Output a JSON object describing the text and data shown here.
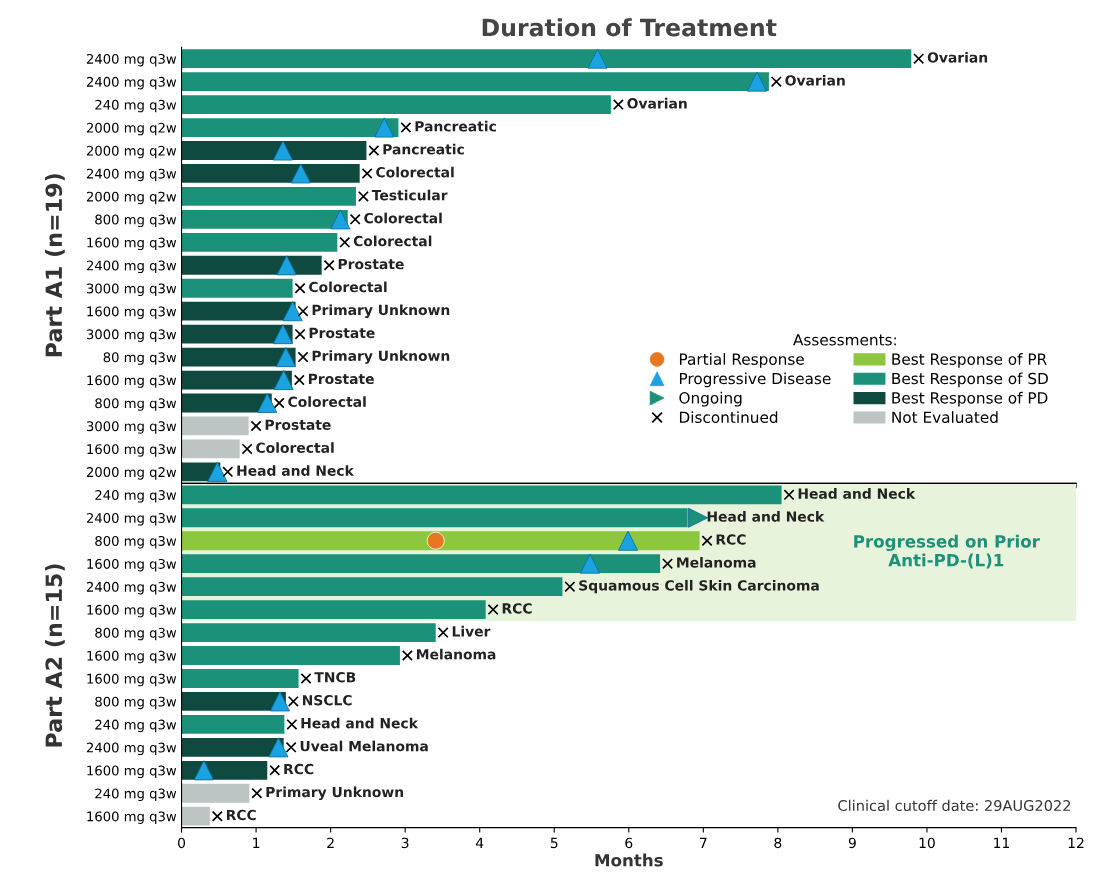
{
  "chart_data": [
    {
      "type": "bar",
      "orientation": "horizontal",
      "title": "Duration of Treatment",
      "ylabel": "Part A1 (n=19)",
      "legend_title": "Assessments:",
      "legend": "bottom right",
      "tick_labels": "y",
      "grid": false,
      "xlim": [
        0,
        12
      ],
      "xticks": [
        0,
        1,
        2,
        3,
        4,
        5,
        6,
        7,
        8,
        9,
        10,
        11,
        12
      ],
      "categories": [
        "2400 mg q3w",
        "2400 mg q3w",
        "240 mg q3w",
        "2000 mg q2w",
        "2000 mg q2w",
        "2400 mg q3w",
        "2000 mg q2w",
        "800 mg q3w",
        "1600 mg q3w",
        "2400 mg q3w",
        "3000 mg q3w",
        "1600 mg q3w",
        "3000 mg q3w",
        "80 mg q3w",
        "1600 mg q3w",
        "800 mg q3w",
        "3000 mg q3w",
        "1600 mg q3w",
        "2000 mg q2w"
      ],
      "series": [
        {
          "type": "scatter",
          "name": "Partial Response",
          "marker": "circle",
          "color": "#e87722",
          "values": [
            null,
            null,
            null,
            null,
            null,
            null,
            null,
            null,
            null,
            null,
            null,
            null,
            null,
            null,
            null,
            null,
            null,
            null,
            null
          ]
        },
        {
          "type": "scatter",
          "name": "Progressive Disease",
          "marker": "triangle",
          "color": "#1aa3e0",
          "values": [
            5.58,
            7.72,
            null,
            2.72,
            1.36,
            1.6,
            null,
            2.13,
            null,
            1.41,
            null,
            1.49,
            1.36,
            1.4,
            1.37,
            1.15,
            null,
            null,
            0.48
          ]
        },
        {
          "type": "scatter",
          "name": "Ongoing",
          "color": "#1a9178",
          "values": [
            null,
            null,
            null,
            null,
            null,
            null,
            null,
            null,
            null,
            null,
            null,
            null,
            null,
            null,
            null,
            null,
            null,
            null,
            null
          ]
        },
        {
          "type": "scatter",
          "name": "Discontinued",
          "marker": "cross",
          "color": "#000000",
          "values": [
            9.89,
            7.98,
            5.86,
            3.01,
            2.58,
            2.49,
            2.44,
            2.33,
            2.19,
            1.98,
            1.59,
            1.63,
            1.59,
            1.63,
            1.58,
            1.31,
            1.0,
            0.88,
            0.62
          ]
        },
        {
          "name": "Best Response of PR",
          "color": "#8dc63f",
          "values": [
            null,
            null,
            null,
            null,
            null,
            null,
            null,
            null,
            null,
            null,
            null,
            null,
            null,
            null,
            null,
            null,
            null,
            null,
            null
          ],
          "value_labels": [
            null,
            null,
            null,
            null,
            null,
            null,
            null,
            null,
            null,
            null,
            null,
            null,
            null,
            null,
            null,
            null,
            null,
            null,
            null
          ]
        },
        {
          "name": "Best Response of SD",
          "color": "#1a9178",
          "values": [
            9.79,
            7.88,
            5.76,
            2.91,
            null,
            null,
            2.34,
            2.23,
            2.09,
            null,
            1.49,
            null,
            null,
            null,
            null,
            null,
            null,
            null,
            null
          ],
          "value_labels": [
            "Ovarian",
            "Ovarian",
            "Ovarian",
            "Pancreatic",
            null,
            null,
            "Testicular",
            "Colorectal",
            "Colorectal",
            null,
            "Colorectal",
            null,
            null,
            null,
            null,
            null,
            null,
            null,
            null
          ]
        },
        {
          "name": "Best Response of PD",
          "color": "#0e4a3f",
          "values": [
            null,
            null,
            null,
            null,
            2.48,
            2.39,
            null,
            null,
            null,
            1.88,
            null,
            1.53,
            1.49,
            1.53,
            1.48,
            1.21,
            null,
            null,
            0.52
          ],
          "value_labels": [
            null,
            null,
            null,
            null,
            "Pancreatic",
            "Colorectal",
            null,
            null,
            null,
            "Prostate",
            null,
            "Primary Unknown",
            "Prostate",
            "Primary Unknown",
            "Prostate",
            "Colorectal",
            null,
            null,
            "Head and Neck"
          ]
        },
        {
          "name": "Not Evaluated",
          "color": "#bcc5c3",
          "values": [
            null,
            null,
            null,
            null,
            null,
            null,
            null,
            null,
            null,
            null,
            null,
            null,
            null,
            null,
            null,
            null,
            0.9,
            0.78,
            null
          ],
          "value_labels": [
            null,
            null,
            null,
            null,
            null,
            null,
            null,
            null,
            null,
            null,
            null,
            null,
            null,
            null,
            null,
            null,
            "Prostate",
            "Colorectal",
            null
          ]
        }
      ]
    },
    {
      "type": "bar",
      "orientation": "horizontal",
      "xlabel": "Months",
      "ylabel": "Part A2 (n=15)",
      "grid": false,
      "xlim": [
        0,
        12
      ],
      "xticks": [
        0,
        1,
        2,
        3,
        4,
        5,
        6,
        7,
        8,
        9,
        10,
        11,
        12
      ],
      "categories": [
        "240 mg q3w",
        "2400 mg q3w",
        "800 mg q3w",
        "1600 mg q3w",
        "2400 mg q3w",
        "1600 mg q3w",
        "800 mg q3w",
        "1600 mg q3w",
        "1600 mg q3w",
        "800 mg q3w",
        "240 mg q3w",
        "2400 mg q3w",
        "1600 mg q3w",
        "240 mg q3w",
        "1600 mg q3w"
      ],
      "annotations": [
        "Progressed on Prior\nAnti-PD-(L)1",
        "Clinical cutoff date: 29AUG2022"
      ],
      "series": [
        {
          "type": "scatter",
          "marker": "circle",
          "color": "#e87722",
          "values": [
            null,
            null,
            3.41,
            null,
            null,
            null,
            null,
            null,
            null,
            null,
            null,
            null,
            null,
            null,
            null
          ]
        },
        {
          "type": "scatter",
          "marker": "triangle",
          "color": "#1aa3e0",
          "values": [
            null,
            null,
            5.99,
            5.48,
            null,
            null,
            null,
            null,
            null,
            1.32,
            null,
            1.3,
            0.3,
            null,
            null
          ]
        },
        {
          "type": "scatter",
          "color": "#1a9178",
          "values": [
            null,
            6.93,
            null,
            null,
            null,
            null,
            null,
            null,
            null,
            null,
            null,
            null,
            null,
            null,
            null
          ]
        },
        {
          "type": "scatter",
          "marker": "cross",
          "color": "#000000",
          "values": [
            8.15,
            null,
            7.05,
            6.52,
            5.21,
            4.18,
            3.51,
            3.03,
            1.67,
            1.5,
            1.48,
            1.47,
            1.25,
            1.01,
            0.48
          ]
        },
        {
          "color": "#8dc63f",
          "values": [
            null,
            null,
            6.95,
            null,
            null,
            null,
            null,
            null,
            null,
            null,
            null,
            null,
            null,
            null,
            null
          ],
          "value_labels": [
            null,
            null,
            "RCC",
            null,
            null,
            null,
            null,
            null,
            null,
            null,
            null,
            null,
            null,
            null,
            null
          ]
        },
        {
          "color": "#1a9178",
          "values": [
            8.05,
            6.79,
            null,
            6.42,
            5.11,
            4.08,
            3.41,
            2.93,
            1.57,
            null,
            1.38,
            null,
            null,
            null,
            null
          ],
          "value_labels": [
            "Head and Neck",
            "Head and Neck",
            null,
            "Melanoma",
            "Squamous Cell Skin Carcinoma",
            "RCC",
            "Liver",
            "Melanoma",
            "TNCB",
            null,
            "Head and Neck",
            null,
            null,
            null,
            null
          ]
        },
        {
          "color": "#0e4a3f",
          "values": [
            null,
            null,
            null,
            null,
            null,
            null,
            null,
            null,
            null,
            1.4,
            null,
            1.37,
            1.15,
            null,
            null
          ],
          "value_labels": [
            null,
            null,
            null,
            null,
            null,
            null,
            null,
            null,
            null,
            "NSCLC",
            null,
            "Uveal Melanoma",
            "RCC",
            null,
            null
          ]
        },
        {
          "color": "#bcc5c3",
          "values": [
            null,
            null,
            null,
            null,
            null,
            null,
            null,
            null,
            null,
            null,
            null,
            null,
            null,
            0.91,
            0.38
          ],
          "value_labels": [
            null,
            null,
            null,
            null,
            null,
            null,
            null,
            null,
            null,
            null,
            null,
            null,
            null,
            "Primary Unknown",
            "RCC"
          ]
        }
      ]
    }
  ]
}
